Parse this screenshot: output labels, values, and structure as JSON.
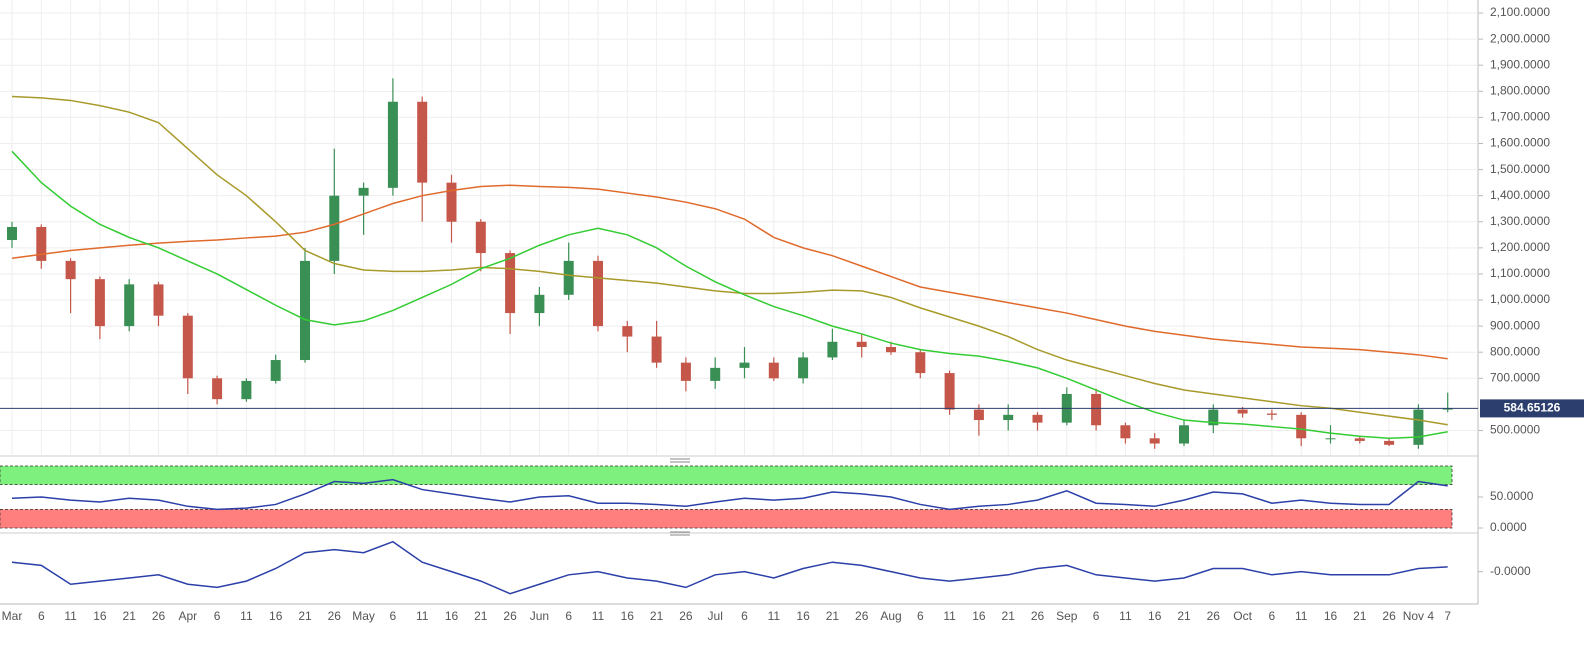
{
  "chart_data": [
    {
      "type": "candlestick",
      "categories": [
        "Mar",
        "6",
        "11",
        "16",
        "21",
        "26",
        "Apr",
        "6",
        "11",
        "16",
        "21",
        "26",
        "May",
        "6",
        "11",
        "16",
        "21",
        "26",
        "Jun",
        "6",
        "11",
        "16",
        "21",
        "26",
        "Jul",
        "6",
        "11",
        "16",
        "21",
        "26",
        "Aug",
        "6",
        "11",
        "16",
        "21",
        "26",
        "Sep",
        "6",
        "11",
        "16",
        "21",
        "26",
        "Oct",
        "6",
        "11",
        "16",
        "21",
        "26",
        "Nov 4",
        "7"
      ],
      "open": [
        1230,
        1280,
        1150,
        1080,
        900,
        1060,
        940,
        700,
        620,
        690,
        770,
        1150,
        1400,
        1430,
        1760,
        1450,
        1300,
        1180,
        950,
        1020,
        1150,
        900,
        860,
        760,
        690,
        740,
        760,
        700,
        780,
        840,
        820,
        800,
        720,
        580,
        540,
        560,
        530,
        640,
        520,
        470,
        450,
        520,
        580,
        565,
        560,
        470,
        470,
        460,
        445,
        580
      ],
      "high": [
        1300,
        1290,
        1160,
        1090,
        1080,
        1070,
        950,
        710,
        700,
        790,
        1200,
        1580,
        1450,
        1850,
        1780,
        1480,
        1310,
        1190,
        1050,
        1220,
        1170,
        920,
        920,
        780,
        780,
        820,
        780,
        800,
        890,
        870,
        840,
        810,
        730,
        600,
        600,
        570,
        665,
        660,
        530,
        490,
        540,
        600,
        590,
        580,
        570,
        520,
        480,
        470,
        600,
        645
      ],
      "low": [
        1200,
        1120,
        950,
        850,
        880,
        900,
        640,
        600,
        610,
        680,
        760,
        1100,
        1250,
        1400,
        1300,
        1220,
        1110,
        870,
        900,
        1000,
        880,
        800,
        740,
        650,
        660,
        700,
        690,
        680,
        770,
        780,
        790,
        700,
        560,
        480,
        500,
        500,
        520,
        500,
        450,
        430,
        440,
        490,
        550,
        540,
        440,
        450,
        450,
        440,
        430,
        570
      ],
      "close": [
        1280,
        1150,
        1080,
        900,
        1060,
        940,
        700,
        620,
        690,
        770,
        1150,
        1400,
        1430,
        1760,
        1450,
        1300,
        1180,
        950,
        1020,
        1150,
        900,
        860,
        760,
        690,
        740,
        760,
        700,
        780,
        840,
        820,
        800,
        720,
        580,
        540,
        560,
        530,
        640,
        520,
        470,
        450,
        520,
        580,
        565,
        560,
        470,
        470,
        460,
        445,
        580,
        585
      ],
      "up_color": "#3a8f55",
      "down_color": "#c4574a",
      "series": [
        {
          "color": "#e06a2c",
          "values": [
            1160,
            1175,
            1190,
            1200,
            1210,
            1218,
            1225,
            1230,
            1238,
            1245,
            1260,
            1290,
            1330,
            1370,
            1400,
            1420,
            1435,
            1440,
            1435,
            1432,
            1425,
            1410,
            1395,
            1375,
            1350,
            1310,
            1240,
            1200,
            1170,
            1130,
            1090,
            1050,
            1030,
            1010,
            990,
            970,
            950,
            925,
            900,
            880,
            865,
            850,
            840,
            830,
            820,
            815,
            810,
            800,
            790,
            775
          ]
        },
        {
          "color": "#a89a2a",
          "values": [
            1780,
            1775,
            1765,
            1745,
            1720,
            1680,
            1580,
            1480,
            1400,
            1300,
            1190,
            1140,
            1115,
            1110,
            1110,
            1115,
            1125,
            1120,
            1110,
            1095,
            1085,
            1075,
            1065,
            1050,
            1035,
            1025,
            1025,
            1030,
            1038,
            1035,
            1010,
            970,
            935,
            900,
            860,
            810,
            770,
            740,
            710,
            680,
            655,
            640,
            625,
            610,
            595,
            585,
            570,
            555,
            540,
            522
          ]
        },
        {
          "color": "#33cc33",
          "values": [
            1570,
            1450,
            1360,
            1290,
            1240,
            1200,
            1150,
            1100,
            1040,
            980,
            925,
            905,
            920,
            960,
            1010,
            1060,
            1120,
            1160,
            1210,
            1250,
            1275,
            1250,
            1200,
            1130,
            1070,
            1020,
            975,
            940,
            900,
            870,
            835,
            810,
            795,
            785,
            765,
            740,
            700,
            655,
            610,
            570,
            540,
            530,
            525,
            515,
            505,
            490,
            478,
            470,
            475,
            495
          ]
        }
      ],
      "current_price": 584.65126,
      "ylim": [
        406,
        2150
      ],
      "yticks": [
        {
          "value": 2100,
          "label": "2,100.0000"
        },
        {
          "value": 2000,
          "label": "2,000.0000"
        },
        {
          "value": 1900,
          "label": "1,900.0000"
        },
        {
          "value": 1800,
          "label": "1,800.0000"
        },
        {
          "value": 1700,
          "label": "1,700.0000"
        },
        {
          "value": 1600,
          "label": "1,600.0000"
        },
        {
          "value": 1500,
          "label": "1,500.0000"
        },
        {
          "value": 1400,
          "label": "1,400.0000"
        },
        {
          "value": 1300,
          "label": "1,300.0000"
        },
        {
          "value": 1200,
          "label": "1,200.0000"
        },
        {
          "value": 1100,
          "label": "1,100.0000"
        },
        {
          "value": 1000,
          "label": "1,000.0000"
        },
        {
          "value": 900,
          "label": "900.0000"
        },
        {
          "value": 800,
          "label": "800.0000"
        },
        {
          "value": 700,
          "label": "700.0000"
        },
        {
          "value": 500,
          "label": "500.0000"
        }
      ],
      "grid": true
    },
    {
      "type": "line",
      "series": [
        {
          "color": "#2b3fa8",
          "values": [
            48,
            50,
            45,
            42,
            48,
            45,
            35,
            30,
            32,
            38,
            55,
            75,
            72,
            78,
            62,
            55,
            48,
            42,
            50,
            52,
            40,
            40,
            38,
            35,
            42,
            48,
            45,
            48,
            58,
            55,
            50,
            38,
            30,
            35,
            38,
            45,
            60,
            40,
            38,
            35,
            45,
            58,
            55,
            40,
            45,
            40,
            38,
            38,
            75,
            68
          ]
        }
      ],
      "bands": [
        {
          "from": 70,
          "to": 100,
          "color": "#7ef07e"
        },
        {
          "from": 0,
          "to": 30,
          "color": "#ff7f7f"
        }
      ],
      "ylim": [
        0,
        100
      ],
      "yticks": [
        {
          "value": 50,
          "label": "50.0000"
        },
        {
          "value": 0,
          "label": "0.0000"
        }
      ]
    },
    {
      "type": "line",
      "series": [
        {
          "color": "#2b3fa8",
          "values": [
            0.3,
            0.2,
            -0.4,
            -0.3,
            -0.2,
            -0.1,
            -0.4,
            -0.5,
            -0.3,
            0.1,
            0.6,
            0.7,
            0.6,
            0.95,
            0.3,
            0.0,
            -0.3,
            -0.7,
            -0.4,
            -0.1,
            0.0,
            -0.2,
            -0.3,
            -0.5,
            -0.1,
            0.0,
            -0.2,
            0.1,
            0.3,
            0.2,
            0.0,
            -0.2,
            -0.3,
            -0.2,
            -0.1,
            0.1,
            0.2,
            -0.1,
            -0.2,
            -0.3,
            -0.2,
            0.1,
            0.1,
            -0.1,
            0.0,
            -0.1,
            -0.1,
            -0.1,
            0.1,
            0.15
          ]
        }
      ],
      "ylim": [
        -0.9,
        1.1
      ],
      "yticks": [
        {
          "value": 0,
          "label": "-0.0000"
        }
      ]
    }
  ]
}
